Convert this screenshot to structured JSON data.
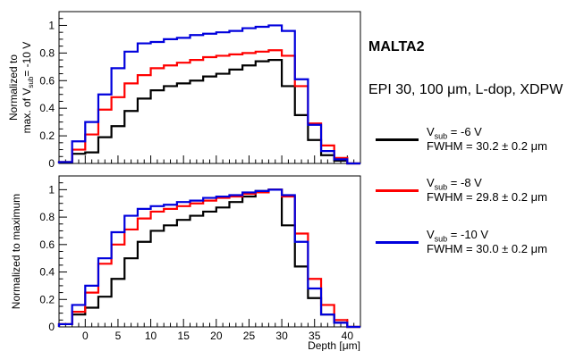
{
  "title": "MALTA2",
  "subtitle": "EPI 30, 100 μm, L-dop, XDPW",
  "legend": [
    {
      "prefix": "V",
      "sub": "sub",
      "suffix": " = -6 V",
      "fwhm": "FWHM = 30.2 ± 0.2 μm",
      "color": "#000000"
    },
    {
      "prefix": "V",
      "sub": "sub",
      "suffix": " = -8 V",
      "fwhm": "FWHM = 29.8 ± 0.2 μm",
      "color": "#ff0000"
    },
    {
      "prefix": "V",
      "sub": "sub",
      "suffix": " = -10 V",
      "fwhm": "FWHM = 30.0 ± 0.2 μm",
      "color": "#0000dd"
    }
  ],
  "chart_data": [
    {
      "type": "line",
      "step": true,
      "ylabel_line1": "Normalized to",
      "ylabel_line2_pre": "max. of V",
      "ylabel_line2_sub": "sub",
      "ylabel_line2_post": "= -10 V",
      "xlabel": "",
      "xlim": [
        -4,
        42
      ],
      "ylim": [
        0,
        1.1
      ],
      "yticks": [
        0,
        0.2,
        0.4,
        0.6,
        0.8,
        1
      ],
      "ytick_labels": [
        "0",
        "0.2",
        "0.4",
        "0.6",
        "0.8",
        "1"
      ],
      "bin_edges": [
        -4,
        -2,
        0,
        2,
        4,
        6,
        8,
        10,
        12,
        14,
        16,
        18,
        20,
        22,
        24,
        26,
        28,
        30,
        32,
        34,
        36,
        38,
        40,
        42
      ],
      "series": [
        {
          "name": "V_sub = -6 V",
          "color": "#000000",
          "values": [
            0.01,
            0.07,
            0.08,
            0.19,
            0.27,
            0.38,
            0.47,
            0.53,
            0.56,
            0.58,
            0.6,
            0.63,
            0.65,
            0.68,
            0.71,
            0.74,
            0.75,
            0.56,
            0.35,
            0.17,
            0.06,
            0.02,
            0.0
          ]
        },
        {
          "name": "V_sub = -8 V",
          "color": "#ff0000",
          "values": [
            0.01,
            0.1,
            0.21,
            0.39,
            0.48,
            0.58,
            0.64,
            0.69,
            0.71,
            0.73,
            0.75,
            0.77,
            0.78,
            0.79,
            0.8,
            0.81,
            0.82,
            0.78,
            0.56,
            0.29,
            0.13,
            0.04,
            0.0
          ]
        },
        {
          "name": "V_sub = -10 V",
          "color": "#0000dd",
          "values": [
            0.01,
            0.16,
            0.3,
            0.5,
            0.69,
            0.81,
            0.87,
            0.88,
            0.9,
            0.91,
            0.93,
            0.94,
            0.95,
            0.96,
            0.98,
            0.99,
            1.0,
            0.96,
            0.61,
            0.28,
            0.09,
            0.03,
            0.0
          ]
        }
      ]
    },
    {
      "type": "line",
      "step": true,
      "ylabel": "Normalized to maximum",
      "xlabel": "Depth [μm]",
      "xlim": [
        -4,
        42
      ],
      "ylim": [
        0,
        1.1
      ],
      "xticks": [
        0,
        5,
        10,
        15,
        20,
        25,
        30,
        35,
        40
      ],
      "xtick_labels": [
        "0",
        "5",
        "10",
        "15",
        "20",
        "25",
        "30",
        "35",
        "40"
      ],
      "yticks": [
        0,
        0.2,
        0.4,
        0.6,
        0.8,
        1
      ],
      "ytick_labels": [
        "0",
        "0.2",
        "0.4",
        "0.6",
        "0.8",
        "1"
      ],
      "bin_edges": [
        -4,
        -2,
        0,
        2,
        4,
        6,
        8,
        10,
        12,
        14,
        16,
        18,
        20,
        22,
        24,
        26,
        28,
        30,
        32,
        34,
        36,
        38,
        40,
        42
      ],
      "series": [
        {
          "name": "V_sub = -6 V",
          "color": "#000000",
          "values": [
            0.02,
            0.09,
            0.14,
            0.22,
            0.35,
            0.5,
            0.62,
            0.7,
            0.74,
            0.78,
            0.81,
            0.84,
            0.87,
            0.91,
            0.95,
            0.99,
            1.0,
            0.74,
            0.44,
            0.21,
            0.09,
            0.03,
            0.0
          ]
        },
        {
          "name": "V_sub = -8 V",
          "color": "#ff0000",
          "values": [
            0.02,
            0.11,
            0.25,
            0.46,
            0.6,
            0.71,
            0.79,
            0.84,
            0.86,
            0.88,
            0.9,
            0.92,
            0.94,
            0.95,
            0.97,
            0.98,
            1.0,
            0.95,
            0.68,
            0.35,
            0.16,
            0.05,
            0.0
          ]
        },
        {
          "name": "V_sub = -10 V",
          "color": "#0000dd",
          "values": [
            0.02,
            0.16,
            0.3,
            0.5,
            0.69,
            0.81,
            0.86,
            0.88,
            0.89,
            0.91,
            0.92,
            0.94,
            0.95,
            0.96,
            0.98,
            0.99,
            1.0,
            0.96,
            0.62,
            0.28,
            0.09,
            0.03,
            0.0
          ]
        }
      ]
    }
  ]
}
